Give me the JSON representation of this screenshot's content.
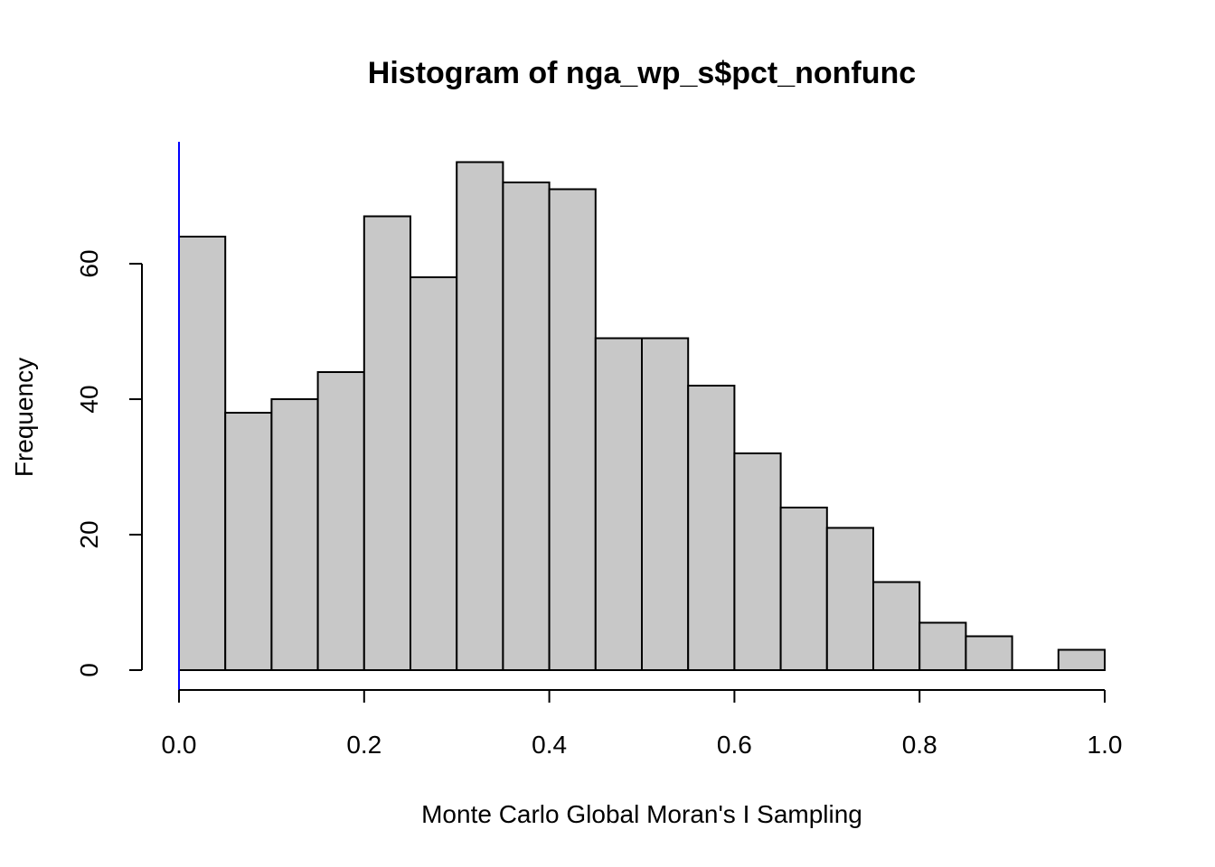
{
  "chart_data": {
    "type": "bar",
    "title": "Histogram of nga_wp_s$pct_nonfunc",
    "xlabel": "Monte Carlo Global Moran's I Sampling",
    "ylabel": "Frequency",
    "bin_edges": [
      0.0,
      0.05,
      0.1,
      0.15,
      0.2,
      0.25,
      0.3,
      0.35,
      0.4,
      0.45,
      0.5,
      0.55,
      0.6,
      0.65,
      0.7,
      0.75,
      0.8,
      0.85,
      0.9,
      0.95,
      1.0
    ],
    "values": [
      64,
      38,
      40,
      44,
      67,
      58,
      75,
      72,
      71,
      49,
      49,
      42,
      32,
      24,
      21,
      13,
      7,
      5,
      0,
      3
    ],
    "xlim": [
      0.0,
      1.0
    ],
    "ylim": [
      0,
      75
    ],
    "x_ticks": [
      0.0,
      0.2,
      0.4,
      0.6,
      0.8,
      1.0
    ],
    "x_tick_labels": [
      "0.0",
      "0.2",
      "0.4",
      "0.6",
      "0.8",
      "1.0"
    ],
    "y_ticks": [
      0,
      20,
      40,
      60
    ],
    "y_tick_labels": [
      "0",
      "20",
      "40",
      "60"
    ],
    "reference_line": {
      "x": 0.0,
      "color": "#0000ff"
    },
    "bar_color": "#c8c8c8",
    "grid": false
  }
}
